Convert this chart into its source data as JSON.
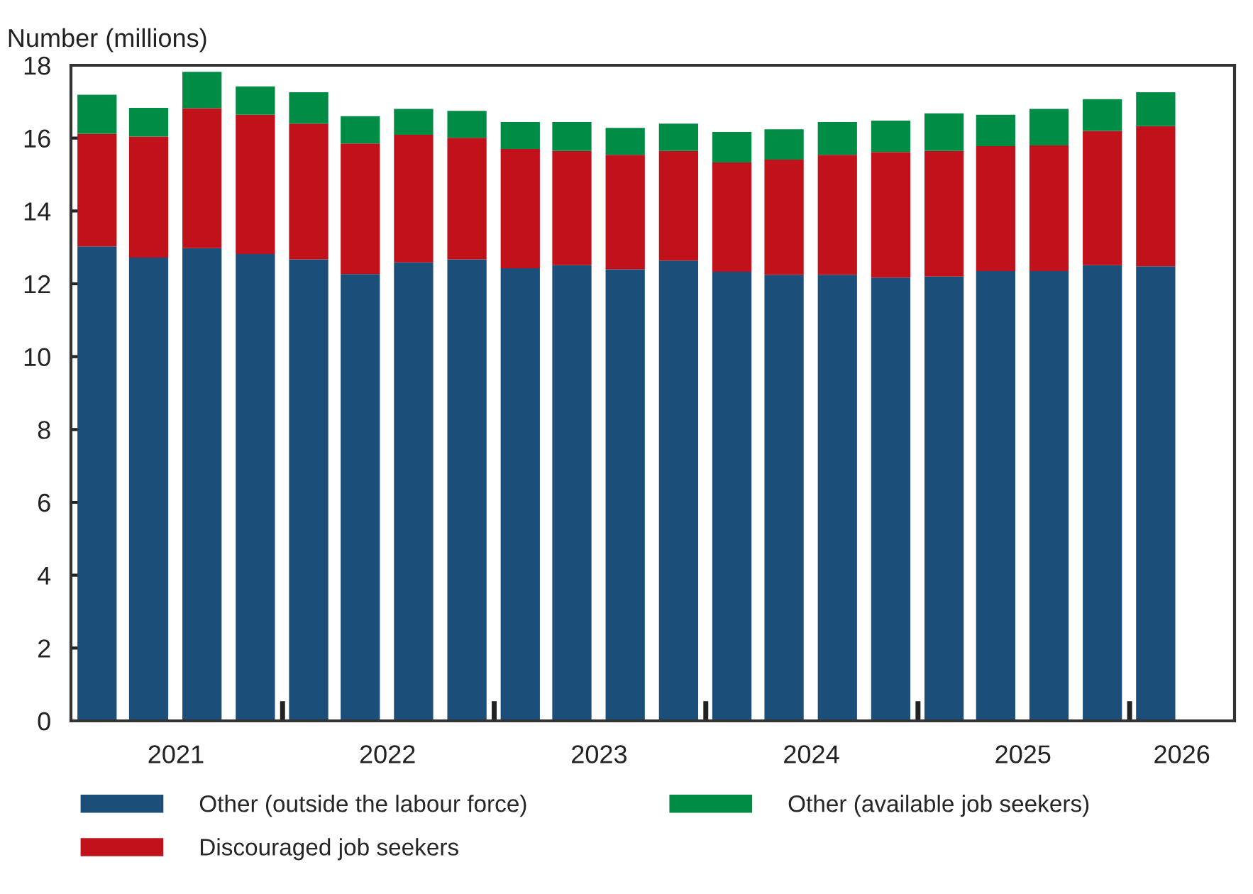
{
  "chart_data": {
    "type": "bar",
    "stacked": true,
    "ylabel": "Number (millions)",
    "x": [
      "2021-02-15",
      "2021-05-15",
      "2021-08-15",
      "2021-11-15",
      "2022-02-15",
      "2022-05-15",
      "2022-08-15",
      "2022-11-15",
      "2023-02-15",
      "2023-05-15",
      "2023-08-15",
      "2023-11-15",
      "2024-02-15",
      "2024-05-15",
      "2024-08-15",
      "2024-11-15",
      "2025-02-15",
      "2025-05-15",
      "2025-08-15",
      "2025-11-15",
      "2026-02-15"
    ],
    "series": [
      {
        "name": "Other (outside the labour force)",
        "color": "#1b4f7a",
        "values": [
          13.03,
          12.72,
          12.98,
          12.82,
          12.67,
          12.27,
          12.59,
          12.67,
          12.43,
          12.51,
          12.4,
          12.64,
          12.33,
          12.25,
          12.25,
          12.17,
          12.2,
          12.35,
          12.35,
          12.51,
          12.48
        ]
      },
      {
        "name": "Discouraged job seekers",
        "color": "#c1121c",
        "values": [
          3.09,
          3.32,
          3.84,
          3.82,
          3.73,
          3.58,
          3.5,
          3.34,
          3.27,
          3.14,
          3.14,
          3.01,
          3.0,
          3.16,
          3.29,
          3.45,
          3.45,
          3.43,
          3.45,
          3.69,
          3.85
        ]
      },
      {
        "name": "Other (available job seekers)",
        "color": "#008c44",
        "values": [
          1.07,
          0.79,
          1.0,
          0.78,
          0.86,
          0.75,
          0.71,
          0.74,
          0.74,
          0.79,
          0.74,
          0.75,
          0.84,
          0.83,
          0.9,
          0.86,
          1.03,
          0.86,
          1.0,
          0.87,
          0.93
        ]
      }
    ],
    "xlim": [
      "2021-01-01",
      "2026-07-01"
    ],
    "xticks": [
      {
        "value": "2021-07-01",
        "label": "2021"
      },
      {
        "value": "2022-01-01",
        "label": null
      },
      {
        "value": "2022-07-01",
        "label": "2022"
      },
      {
        "value": "2023-01-01",
        "label": null
      },
      {
        "value": "2023-07-01",
        "label": "2023"
      },
      {
        "value": "2024-01-01",
        "label": null
      },
      {
        "value": "2024-07-01",
        "label": "2024"
      },
      {
        "value": "2025-01-01",
        "label": null
      },
      {
        "value": "2025-07-01",
        "label": "2025"
      },
      {
        "value": "2026-01-01",
        "label": null
      },
      {
        "value": "2026-04-01",
        "label": "2026"
      }
    ],
    "ylim": [
      0,
      18
    ],
    "yticks": [
      0,
      2,
      4,
      6,
      8,
      10,
      12,
      14,
      16,
      18
    ],
    "legend": "bottom"
  }
}
